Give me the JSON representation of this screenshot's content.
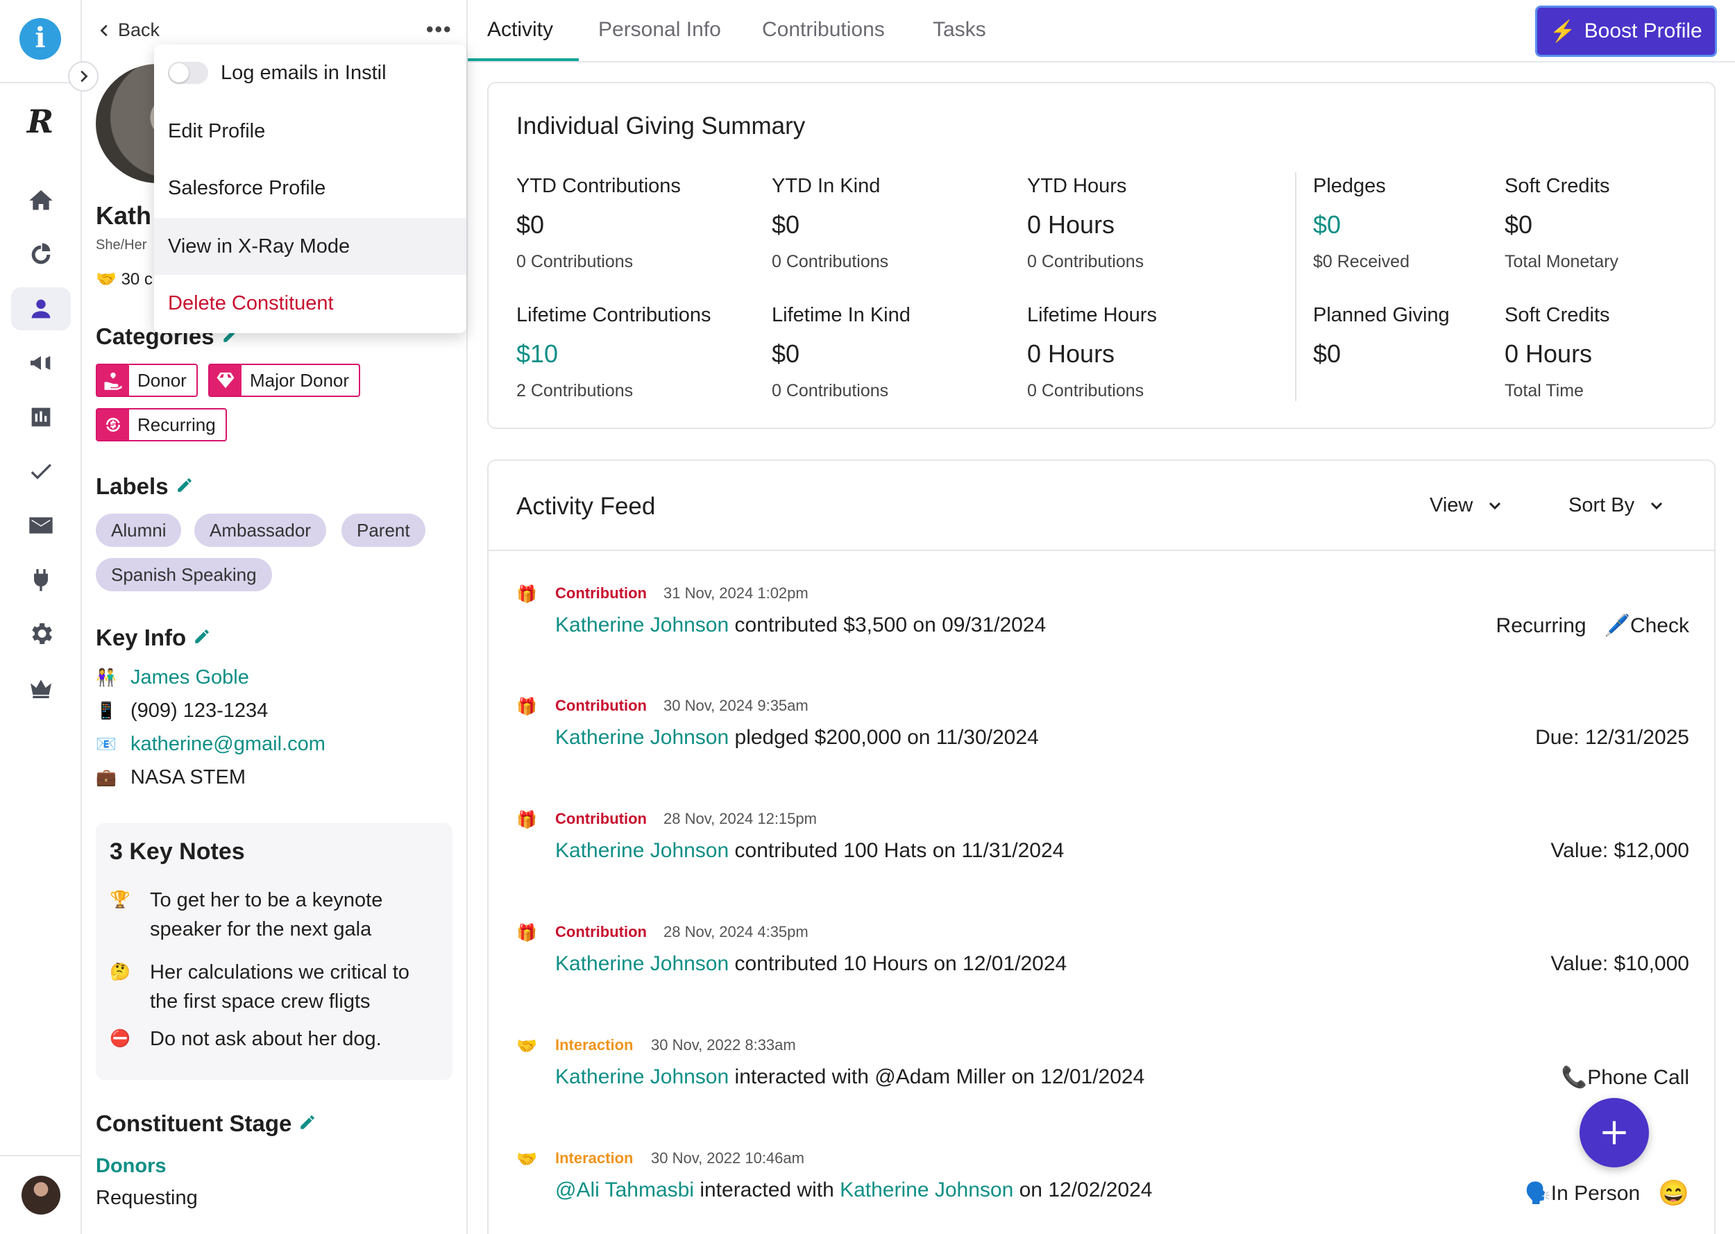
{
  "rail": {
    "items": [
      "home",
      "donations",
      "constituents",
      "campaigns",
      "reports",
      "tasks",
      "email",
      "integrations",
      "settings",
      "premium"
    ]
  },
  "panel": {
    "back_label": "Back",
    "more_label": "•••",
    "name": "Kath",
    "pronouns": "She/Her",
    "years": "30 c",
    "categories_title": "Categories",
    "categories": [
      "Donor",
      "Major Donor",
      "Recurring"
    ],
    "labels_title": "Labels",
    "labels": [
      "Alumni",
      "Ambassador",
      "Parent",
      "Spanish Speaking"
    ],
    "keyinfo_title": "Key Info",
    "keyinfo": {
      "spouse": "James Goble",
      "phone": "(909) 123-1234",
      "email": "katherine@gmail.com",
      "employer": "NASA STEM"
    },
    "notes_title": "3 Key Notes",
    "notes": [
      {
        "line1": "To get her to be a keynote",
        "line2": "speaker for the next gala"
      },
      {
        "line1": "Her calculations we critical to",
        "line2": "the first space crew fligts"
      },
      {
        "line1": "Do not ask about her dog.",
        "line2": ""
      }
    ],
    "stage_title": "Constituent Stage",
    "stage_value": "Donors",
    "stage_sub": "Requesting"
  },
  "menu": {
    "log_emails": "Log emails in Instil",
    "edit_profile": "Edit Profile",
    "salesforce_profile": "Salesforce Profile",
    "xray": "View in X-Ray Mode",
    "delete": "Delete Constituent"
  },
  "tabs": {
    "activity": "Activity",
    "personal": "Personal Info",
    "contributions": "Contributions",
    "tasks": "Tasks",
    "boost": "Boost Profile"
  },
  "summary": {
    "title": "Individual Giving Summary",
    "stats": {
      "ytd_contrib": {
        "label": "YTD Contributions",
        "value": "$0",
        "sub": "0 Contributions"
      },
      "ytd_inkind": {
        "label": "YTD In Kind",
        "value": "$0",
        "sub": "0 Contributions"
      },
      "ytd_hours": {
        "label": "YTD Hours",
        "value": "0 Hours",
        "sub": "0 Contributions"
      },
      "pledges": {
        "label": "Pledges",
        "value": "$0",
        "sub": "$0 Received"
      },
      "soft_credits": {
        "label": "Soft Credits",
        "value": "$0",
        "sub": "Total Monetary"
      },
      "life_contrib": {
        "label": "Lifetime Contributions",
        "value": "$10",
        "sub": "2 Contributions"
      },
      "life_inkind": {
        "label": "Lifetime In Kind",
        "value": "$0",
        "sub": "0 Contributions"
      },
      "life_hours": {
        "label": "Lifetime Hours",
        "value": "0 Hours",
        "sub": "0 Contributions"
      },
      "planned": {
        "label": "Planned Giving",
        "value": "$0",
        "sub": ""
      },
      "soft_time": {
        "label": "Soft Credits",
        "value": "0 Hours",
        "sub": "Total Time"
      }
    }
  },
  "feed": {
    "title": "Activity Feed",
    "view_label": "View",
    "sort_label": "Sort By",
    "entries": [
      {
        "type": "Contribution",
        "time": "31 Nov, 2024 1:02pm",
        "actor": "Katherine Johnson",
        "text": " contributed $3,500 on 09/31/2024",
        "right1": "Recurring",
        "right2": "Check"
      },
      {
        "type": "Contribution",
        "time": "30 Nov, 2024 9:35am",
        "actor": "Katherine Johnson",
        "text": " pledged $200,000 on 11/30/2024",
        "right1": "Due: 12/31/2025"
      },
      {
        "type": "Contribution",
        "time": "28 Nov, 2024 12:15pm",
        "actor": "Katherine Johnson",
        "text": " contributed 100 Hats on 11/31/2024",
        "right1": "Value: $12,000"
      },
      {
        "type": "Contribution",
        "time": "28 Nov, 2024 4:35pm",
        "actor": "Katherine Johnson",
        "text": " contributed 10 Hours on 12/01/2024",
        "right1": "Value: $10,000"
      },
      {
        "type": "Interaction",
        "time": "30 Nov, 2022 8:33am",
        "actor": "Katherine Johnson",
        "text": " interacted with @Adam Miller on 12/01/2024",
        "right1": "Phone Call"
      },
      {
        "type": "Interaction",
        "time": "30 Nov, 2022 10:46am",
        "actor": "@Ali Tahmasbi",
        "text": " interacted with ",
        "actor2": "Katherine Johnson",
        "text2": " on 12/02/2024",
        "right1": "In Person"
      }
    ]
  }
}
